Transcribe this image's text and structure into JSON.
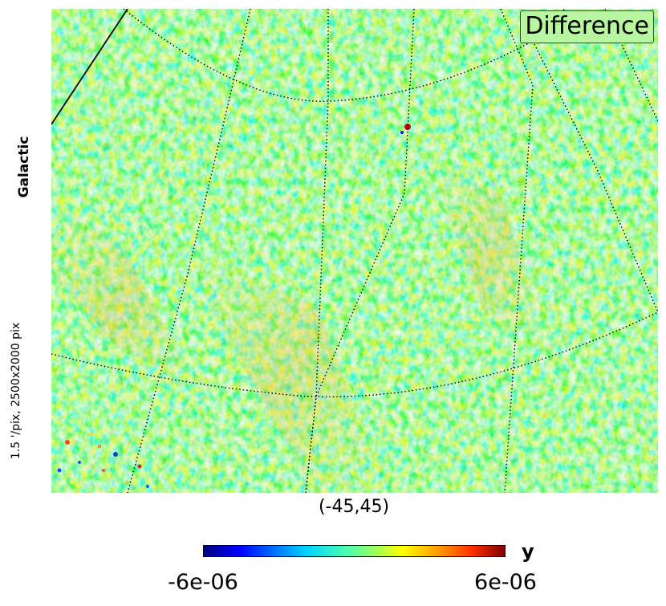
{
  "panel_label": "Difference",
  "coordinate_system": "Galactic",
  "resolution_info": "1.5 '/pix,   2500x2000 pix",
  "center_coords": "(-45,45)",
  "colorbar": {
    "unit": "y",
    "min_label": "-6e-06",
    "max_label": "6e-06",
    "colormap": "jet"
  },
  "colors": {
    "map_base": "#8fe07a",
    "label_box_bg": "#b6f7a0",
    "graticule": "#000000"
  }
}
